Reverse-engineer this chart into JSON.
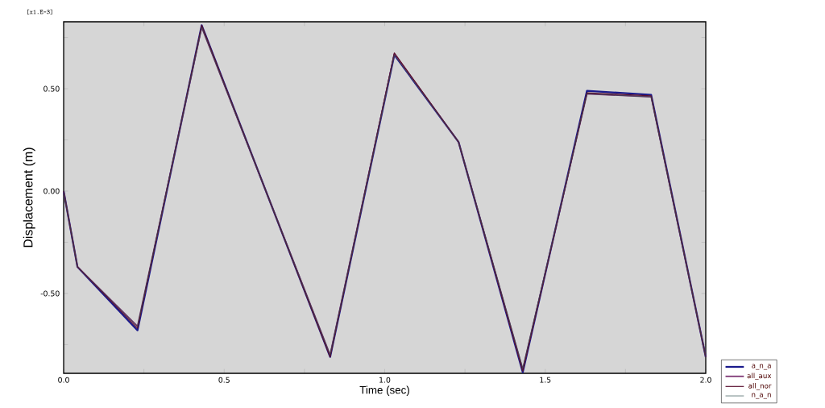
{
  "chart_data": {
    "type": "line",
    "xlabel": "Time (sec)",
    "ylabel": "Displacement  (m)",
    "annotations": [
      "[x1.E-3]"
    ],
    "x": [
      0,
      0.043,
      0.23,
      0.43,
      0.83,
      1.03,
      1.23,
      1.43,
      1.63,
      1.83,
      2.0
    ],
    "series": [
      {
        "name": "a_n_a",
        "color": "#1a1a8c",
        "values": [
          0,
          -0.37,
          -0.68,
          0.81,
          -0.81,
          0.665,
          0.24,
          -0.885,
          0.49,
          0.47,
          -0.81
        ]
      },
      {
        "name": "all_aux",
        "color": "#7a3070",
        "values": [
          0,
          -0.37,
          -0.66,
          0.8,
          -0.8,
          0.67,
          0.24,
          -0.87,
          0.475,
          0.46,
          -0.81
        ]
      },
      {
        "name": "all_nor",
        "color": "#5a1030",
        "values": [
          0,
          -0.37,
          -0.67,
          0.81,
          -0.81,
          0.675,
          0.24,
          -0.88,
          0.48,
          0.465,
          -0.81
        ]
      },
      {
        "name": "n_a_n",
        "color": "#2a4a4a",
        "values": [
          0,
          -0.37,
          -0.66,
          0.8,
          -0.8,
          0.665,
          0.24,
          -0.865,
          0.475,
          0.46,
          -0.81
        ]
      }
    ],
    "xlim": [
      0,
      2.0
    ],
    "ylim": [
      -0.89,
      0.827
    ],
    "xticks": [
      {
        "value": 0,
        "label": "0.0"
      },
      {
        "value": 0.25,
        "label": null
      },
      {
        "value": 0.5,
        "label": "0.5"
      },
      {
        "value": 0.75,
        "label": null
      },
      {
        "value": 1.0,
        "label": "1.0"
      },
      {
        "value": 1.25,
        "label": null
      },
      {
        "value": 1.5,
        "label": "1.5"
      },
      {
        "value": 1.75,
        "label": null
      },
      {
        "value": 2.0,
        "label": "2.0"
      }
    ],
    "yticks": [
      {
        "value": -0.75,
        "label": null
      },
      {
        "value": -0.5,
        "label": "-0.50"
      },
      {
        "value": -0.25,
        "label": null
      },
      {
        "value": 0,
        "label": "0.00"
      },
      {
        "value": 0.25,
        "label": null
      },
      {
        "value": 0.5,
        "label": "0.50"
      },
      {
        "value": 0.75,
        "label": null
      }
    ],
    "legend": "bottom right",
    "grid": false,
    "line_style": "solid"
  }
}
